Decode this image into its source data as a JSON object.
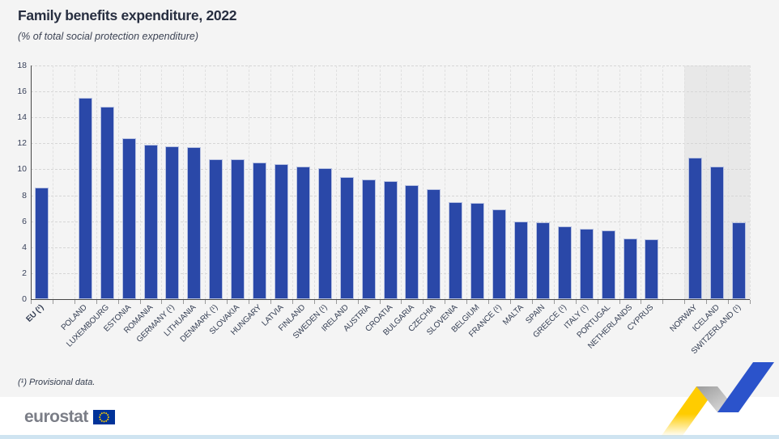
{
  "page": {
    "background": "#f4f4f4",
    "brand": {
      "wordmark": "eurostat",
      "flag_blue": "#003399",
      "flag_star_yellow": "#ffcc00"
    },
    "footer_accent_color": "#cfe4f1"
  },
  "chart_data": {
    "type": "bar",
    "title": "Family benefits expenditure, 2022",
    "subtitle": "(% of total social protection expenditure)",
    "footnote": "(¹) Provisional data.",
    "unit": "% of total social protection expenditure",
    "ylim": [
      0,
      18
    ],
    "ytick_step": 2,
    "grid": "horizontal dashed lines every 2 units, faint vertical dashed separators per category",
    "legend": "none",
    "bar_color": "#2a48a8",
    "efta_band_color": "#e8e8e8",
    "series": [
      {
        "label": "EU (¹)",
        "value": 8.6,
        "group": "eu",
        "bold": true
      },
      {
        "label": "POLAND",
        "value": 15.5,
        "group": "members"
      },
      {
        "label": "LUXEMBOURG",
        "value": 14.8,
        "group": "members"
      },
      {
        "label": "ESTONIA",
        "value": 12.4,
        "group": "members"
      },
      {
        "label": "ROMANIA",
        "value": 11.9,
        "group": "members"
      },
      {
        "label": "GERMANY (¹)",
        "value": 11.8,
        "group": "members"
      },
      {
        "label": "LITHUANIA",
        "value": 11.7,
        "group": "members"
      },
      {
        "label": "DENMARK (¹)",
        "value": 10.8,
        "group": "members"
      },
      {
        "label": "SLOVAKIA",
        "value": 10.8,
        "group": "members"
      },
      {
        "label": "HUNGARY",
        "value": 10.5,
        "group": "members"
      },
      {
        "label": "LATVIA",
        "value": 10.4,
        "group": "members"
      },
      {
        "label": "FINLAND",
        "value": 10.2,
        "group": "members"
      },
      {
        "label": "SWEDEN (¹)",
        "value": 10.1,
        "group": "members"
      },
      {
        "label": "IRELAND",
        "value": 9.4,
        "group": "members"
      },
      {
        "label": "AUSTRIA",
        "value": 9.2,
        "group": "members"
      },
      {
        "label": "CROATIA",
        "value": 9.1,
        "group": "members"
      },
      {
        "label": "BULGARIA",
        "value": 8.8,
        "group": "members"
      },
      {
        "label": "CZECHIA",
        "value": 8.5,
        "group": "members"
      },
      {
        "label": "SLOVENIA",
        "value": 7.5,
        "group": "members"
      },
      {
        "label": "BELGIUM",
        "value": 7.4,
        "group": "members"
      },
      {
        "label": "FRANCE (¹)",
        "value": 6.9,
        "group": "members"
      },
      {
        "label": "MALTA",
        "value": 6.0,
        "group": "members"
      },
      {
        "label": "SPAIN",
        "value": 5.9,
        "group": "members"
      },
      {
        "label": "GREECE (¹)",
        "value": 5.6,
        "group": "members"
      },
      {
        "label": "ITALY (¹)",
        "value": 5.4,
        "group": "members"
      },
      {
        "label": "PORTUGAL",
        "value": 5.3,
        "group": "members"
      },
      {
        "label": "NETHERLANDS",
        "value": 4.7,
        "group": "members"
      },
      {
        "label": "CYPRUS",
        "value": 4.6,
        "group": "members"
      },
      {
        "label": "NORWAY",
        "value": 10.9,
        "group": "efta"
      },
      {
        "label": "ICELAND",
        "value": 10.2,
        "group": "efta"
      },
      {
        "label": "SWITZERLAND (¹)",
        "value": 5.9,
        "group": "efta"
      }
    ]
  }
}
